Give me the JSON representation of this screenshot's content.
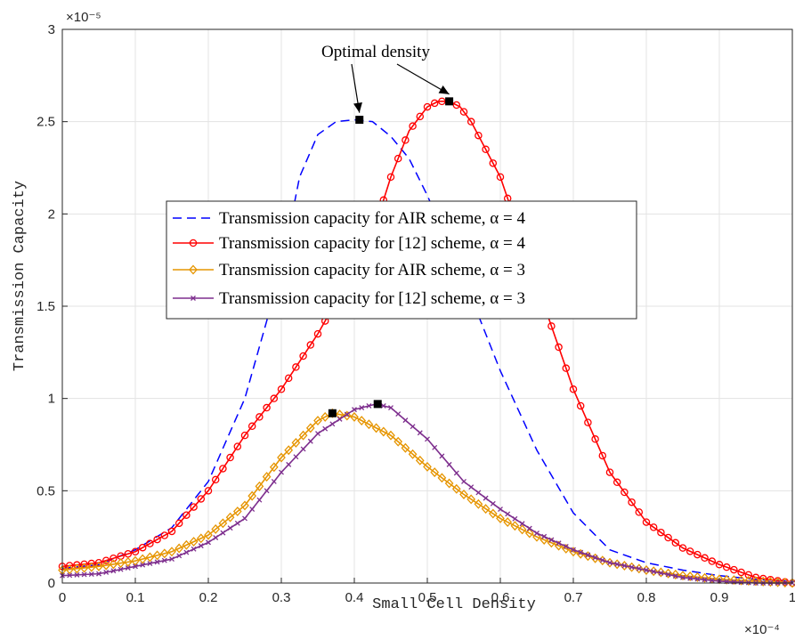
{
  "chart_data": {
    "type": "line",
    "xlabel": "Small Cell Density",
    "ylabel": "Transmission Capacity",
    "x_exponent_label": "×10⁻⁴",
    "y_exponent_label": "×10⁻⁵",
    "xlim": [
      0,
      1
    ],
    "ylim": [
      0,
      3
    ],
    "x_ticks": [
      "0",
      "0.1",
      "0.2",
      "0.3",
      "0.4",
      "0.5",
      "0.6",
      "0.7",
      "0.8",
      "0.9",
      "1"
    ],
    "y_ticks": [
      "0",
      "0.5",
      "1",
      "1.5",
      "2",
      "2.5",
      "3"
    ],
    "grid": true,
    "legend_placement": "center-left",
    "annotation": "Optimal density",
    "series": [
      {
        "name": "Transmission capacity for AIR scheme, α = 4",
        "color": "#0000ff",
        "style": "dashed",
        "marker": "none",
        "x": [
          0,
          0.05,
          0.1,
          0.15,
          0.2,
          0.25,
          0.3,
          0.325,
          0.35,
          0.375,
          0.4,
          0.425,
          0.45,
          0.475,
          0.5,
          0.55,
          0.6,
          0.65,
          0.7,
          0.75,
          0.8,
          0.85,
          0.9,
          0.95,
          1.0
        ],
        "y": [
          0.08,
          0.1,
          0.18,
          0.3,
          0.55,
          1.0,
          1.7,
          2.2,
          2.43,
          2.5,
          2.51,
          2.5,
          2.42,
          2.3,
          2.1,
          1.65,
          1.15,
          0.72,
          0.38,
          0.18,
          0.11,
          0.07,
          0.04,
          0.02,
          0.01
        ]
      },
      {
        "name": "Transmission capacity for [12] scheme, α = 4",
        "color": "#ff0000",
        "style": "solid",
        "marker": "circle",
        "x": [
          0,
          0.05,
          0.1,
          0.15,
          0.2,
          0.25,
          0.3,
          0.35,
          0.4,
          0.43,
          0.45,
          0.475,
          0.5,
          0.515,
          0.53,
          0.545,
          0.56,
          0.6,
          0.65,
          0.7,
          0.75,
          0.8,
          0.85,
          0.9,
          0.95,
          1.0
        ],
        "y": [
          0.09,
          0.11,
          0.17,
          0.28,
          0.5,
          0.8,
          1.05,
          1.35,
          1.7,
          1.95,
          2.2,
          2.45,
          2.58,
          2.61,
          2.61,
          2.58,
          2.5,
          2.2,
          1.62,
          1.05,
          0.6,
          0.33,
          0.19,
          0.1,
          0.03,
          0.0
        ]
      },
      {
        "name": "Transmission capacity for AIR scheme, α = 3",
        "color": "#e69500",
        "style": "solid",
        "marker": "diamond",
        "x": [
          0,
          0.05,
          0.1,
          0.15,
          0.2,
          0.25,
          0.3,
          0.35,
          0.37,
          0.4,
          0.45,
          0.5,
          0.55,
          0.6,
          0.65,
          0.7,
          0.75,
          0.8,
          0.85,
          0.9,
          0.95,
          1.0
        ],
        "y": [
          0.07,
          0.09,
          0.12,
          0.17,
          0.26,
          0.42,
          0.68,
          0.88,
          0.92,
          0.9,
          0.8,
          0.63,
          0.48,
          0.35,
          0.25,
          0.17,
          0.11,
          0.07,
          0.04,
          0.02,
          0.01,
          0.0
        ]
      },
      {
        "name": "Transmission capacity for [12] scheme, α = 3",
        "color": "#7e2f8e",
        "style": "solid",
        "marker": "x",
        "x": [
          0,
          0.05,
          0.1,
          0.15,
          0.2,
          0.25,
          0.3,
          0.35,
          0.4,
          0.43,
          0.45,
          0.5,
          0.55,
          0.6,
          0.65,
          0.7,
          0.75,
          0.8,
          0.85,
          0.9,
          0.95,
          1.0
        ],
        "y": [
          0.04,
          0.05,
          0.09,
          0.13,
          0.22,
          0.35,
          0.6,
          0.81,
          0.94,
          0.97,
          0.95,
          0.78,
          0.55,
          0.4,
          0.27,
          0.18,
          0.11,
          0.07,
          0.03,
          0.01,
          0.0,
          0.0
        ]
      }
    ],
    "optimal_points": [
      {
        "x": 0.407,
        "y": 2.51
      },
      {
        "x": 0.53,
        "y": 2.61
      },
      {
        "x": 0.37,
        "y": 0.92
      },
      {
        "x": 0.432,
        "y": 0.97
      }
    ]
  }
}
